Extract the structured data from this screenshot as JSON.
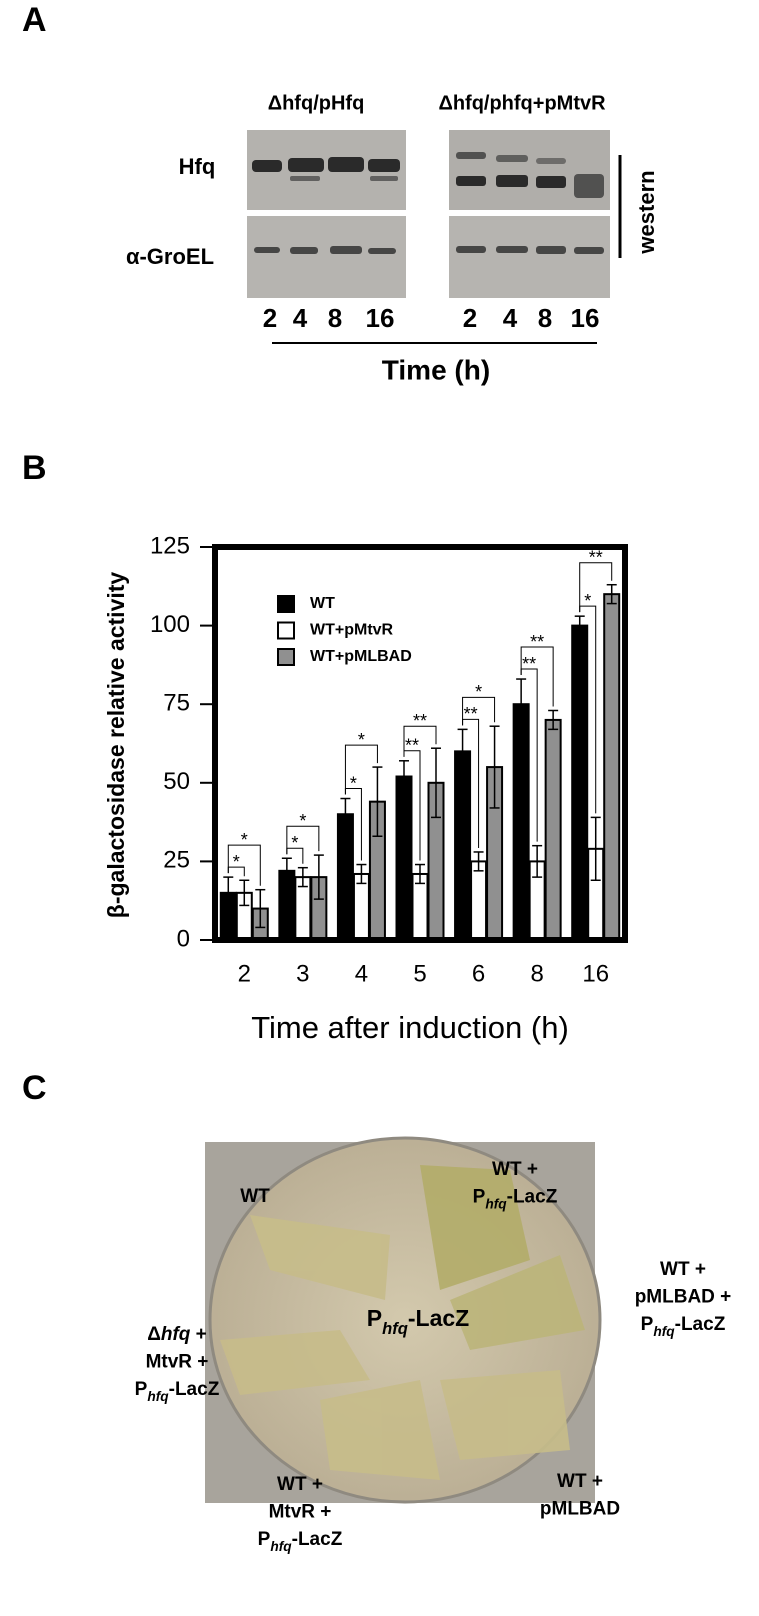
{
  "panel_a": {
    "label": "A",
    "groups": [
      {
        "title": "Δhfq/pHfq",
        "lanes": [
          "2",
          "4",
          "8",
          "16"
        ]
      },
      {
        "title": "Δhfq/phfq+pMtvR",
        "lanes": [
          "2",
          "4",
          "8",
          "16"
        ]
      }
    ],
    "rows": [
      "Hfq",
      "α-GroEL"
    ],
    "side_label": "western",
    "x_label": "Time (h)"
  },
  "chart_data": {
    "type": "bar",
    "panel_label": "B",
    "y_label": "β-galactosidase relative activity",
    "x_label": "Time after induction (h)",
    "categories": [
      "2",
      "3",
      "4",
      "5",
      "6",
      "8",
      "16"
    ],
    "series": [
      {
        "name": "WT",
        "color": "#000000",
        "values": [
          15,
          22,
          40,
          52,
          60,
          75,
          100
        ],
        "errors": [
          5,
          4,
          5,
          5,
          7,
          8,
          3
        ]
      },
      {
        "name": "WT+pMtvR",
        "color": "#ffffff",
        "values": [
          15,
          20,
          21,
          21,
          25,
          25,
          29
        ],
        "errors": [
          4,
          3,
          3,
          3,
          3,
          5,
          10
        ]
      },
      {
        "name": "WT+pMLBAD",
        "color": "#909090",
        "values": [
          10,
          20,
          44,
          50,
          55,
          70,
          110
        ],
        "errors": [
          6,
          7,
          11,
          11,
          13,
          3,
          3
        ]
      }
    ],
    "significance": [
      {
        "outer": "*",
        "inner": "*"
      },
      {
        "outer": "*",
        "inner": "*"
      },
      {
        "outer": "*",
        "inner": "*"
      },
      {
        "outer": "**",
        "inner": "**"
      },
      {
        "outer": "*",
        "inner": "**"
      },
      {
        "outer": "**",
        "inner": "**"
      },
      {
        "outer": "**",
        "inner": "*"
      }
    ],
    "ylim": [
      0,
      125
    ],
    "yticks": [
      0,
      25,
      50,
      75,
      100,
      125
    ]
  },
  "panel_c": {
    "label": "C",
    "labels": [
      {
        "lines": [
          [
            "WT"
          ]
        ]
      },
      {
        "lines": [
          [
            "WT +"
          ],
          [
            "P",
            {
              "text": "hfq",
              "style": "sub"
            },
            "-LacZ"
          ]
        ]
      },
      {
        "lines": [
          [
            "WT  +"
          ],
          [
            "pMLBAD +"
          ],
          [
            "P",
            {
              "text": "hfq",
              "style": "sub"
            },
            "-LacZ"
          ]
        ]
      },
      {
        "lines": [
          [
            "P",
            {
              "text": "hfq",
              "style": "sub"
            },
            "-LacZ"
          ]
        ]
      },
      {
        "lines": [
          [
            "Δ",
            {
              "text": "hfq",
              "style": "italic"
            },
            "  +"
          ],
          [
            "MtvR +"
          ],
          [
            "P",
            {
              "text": "hfq",
              "style": "sub"
            },
            "-LacZ"
          ]
        ]
      },
      {
        "lines": [
          [
            "WT  +"
          ],
          [
            "MtvR +"
          ],
          [
            "P",
            {
              "text": "hfq",
              "style": "sub"
            },
            "-LacZ"
          ]
        ]
      },
      {
        "lines": [
          [
            "WT  +"
          ],
          [
            "pMLBAD"
          ]
        ]
      }
    ]
  }
}
